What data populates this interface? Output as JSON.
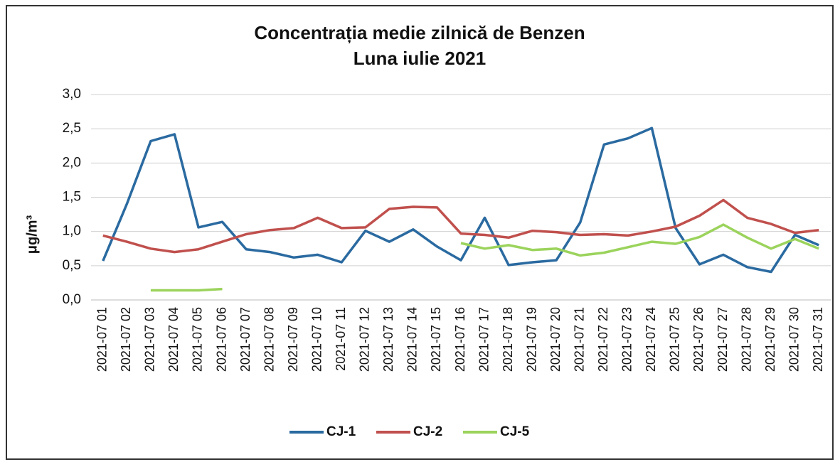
{
  "chart_data": {
    "type": "line",
    "title": "Concentrația medie zilnică de Benzen",
    "subtitle": "Luna iulie 2021",
    "y_label": "μg/m³",
    "categories": [
      "2021-07 01",
      "2021-07 02",
      "2021-07 03",
      "2021-07 04",
      "2021-07 05",
      "2021-07 06",
      "2021-07 07",
      "2021-07 08",
      "2021-07 09",
      "2021-07 10",
      "2021-07 11",
      "2021-07 12",
      "2021-07 13",
      "2021-07 14",
      "2021-07 15",
      "2021-07 16",
      "2021-07 17",
      "2021-07 18",
      "2021-07 19",
      "2021-07 20",
      "2021-07 21",
      "2021-07 22",
      "2021-07 23",
      "2021-07 24",
      "2021-07 25",
      "2021-07 26",
      "2021-07 27",
      "2021-07 28",
      "2021-07 29",
      "2021-07 30",
      "2021-07 31"
    ],
    "series": [
      {
        "name": "CJ-1",
        "color": "#2a6aa0",
        "values": [
          0.57,
          1.4,
          2.32,
          2.42,
          1.06,
          1.14,
          0.74,
          0.7,
          0.62,
          0.66,
          0.55,
          1.01,
          0.85,
          1.03,
          0.78,
          0.58,
          1.2,
          0.51,
          0.55,
          0.58,
          1.13,
          2.27,
          2.36,
          2.51,
          1.05,
          0.52,
          0.66,
          0.48,
          0.41,
          0.95,
          0.8
        ]
      },
      {
        "name": "CJ-2",
        "color": "#c0504d",
        "values": [
          0.94,
          0.85,
          0.75,
          0.7,
          0.74,
          0.85,
          0.96,
          1.02,
          1.05,
          1.2,
          1.05,
          1.06,
          1.33,
          1.36,
          1.35,
          0.97,
          0.95,
          0.91,
          1.01,
          0.99,
          0.95,
          0.96,
          0.94,
          1.0,
          1.07,
          1.23,
          1.46,
          1.2,
          1.11,
          0.98,
          1.02
        ]
      },
      {
        "name": "CJ-5",
        "color": "#9bd35c",
        "values": [
          null,
          null,
          0.14,
          0.14,
          0.14,
          0.16,
          null,
          null,
          null,
          null,
          null,
          null,
          null,
          null,
          null,
          0.83,
          0.75,
          0.8,
          0.73,
          0.75,
          0.65,
          0.69,
          0.77,
          0.85,
          0.82,
          0.92,
          1.1,
          0.91,
          0.75,
          0.89,
          0.75
        ]
      }
    ],
    "ylim": [
      0,
      3
    ],
    "yticks": [
      {
        "value": 0,
        "label": "0,0"
      },
      {
        "value": 0.5,
        "label": "0,5"
      },
      {
        "value": 1,
        "label": "1,0"
      },
      {
        "value": 1.5,
        "label": "1,5"
      },
      {
        "value": 2,
        "label": "2,0"
      },
      {
        "value": 2.5,
        "label": "2,5"
      },
      {
        "value": 3,
        "label": "3,0"
      }
    ],
    "grid": true,
    "legend": "bottom"
  }
}
